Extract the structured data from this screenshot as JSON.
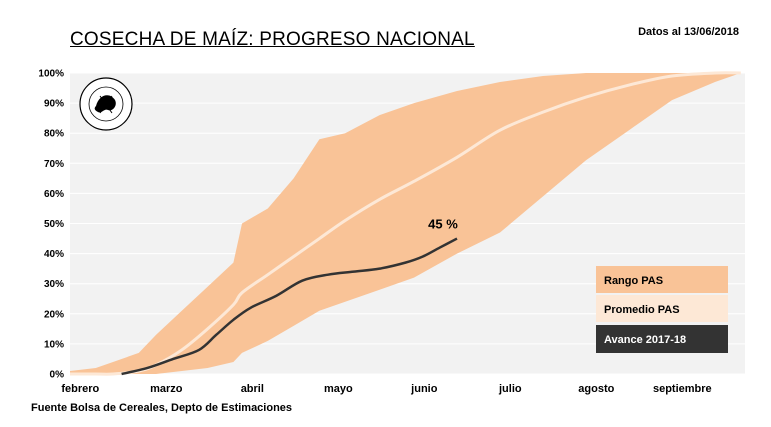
{
  "header": {
    "title": "COSECHA DE MAÍZ: PROGRESO NACIONAL",
    "date_note": "Datos al 13/06/2018"
  },
  "footer": {
    "source": "Fuente Bolsa de Cereales, Depto de Estimaciones"
  },
  "colors": {
    "range": "#f9c397",
    "average": "#fde8d6",
    "current": "#333333",
    "plot_bg": "#f2f2f2",
    "grid": "#ffffff"
  },
  "chart_data": {
    "type": "area",
    "title": "COSECHA DE MAÍZ: PROGRESO NACIONAL",
    "xlabel": "",
    "ylabel": "",
    "ylim": [
      0,
      100
    ],
    "y_ticks": [
      "0%",
      "10%",
      "20%",
      "30%",
      "40%",
      "50%",
      "60%",
      "70%",
      "80%",
      "90%",
      "100%"
    ],
    "x_ticks": [
      "febrero",
      "marzo",
      "abril",
      "mayo",
      "junio",
      "julio",
      "agosto",
      "septiembre"
    ],
    "x_unit": "month index (0 = start of febrero)",
    "grid": true,
    "legend_position": "bottom-right",
    "series": [
      {
        "name": "Rango PAS",
        "kind": "band",
        "x": [
          0,
          0.3,
          0.5,
          0.8,
          1.0,
          1.3,
          1.6,
          1.9,
          2.0,
          2.3,
          2.6,
          2.9,
          3.2,
          3.6,
          4.0,
          4.5,
          5.0,
          5.5,
          6.0,
          6.5,
          7.0,
          7.5,
          7.8
        ],
        "upper": [
          1,
          2,
          4,
          7,
          13,
          21,
          29,
          37,
          50,
          55,
          65,
          78,
          80,
          86,
          90,
          94,
          97,
          99,
          100,
          100,
          100,
          100,
          100
        ],
        "lower": [
          0,
          0,
          0,
          0,
          0,
          1,
          2,
          4,
          7,
          11,
          16,
          21,
          24,
          28,
          32,
          40,
          47,
          59,
          71,
          81,
          91,
          97,
          100
        ]
      },
      {
        "name": "Promedio PAS",
        "kind": "line",
        "x": [
          0,
          0.3,
          0.5,
          0.8,
          1.0,
          1.3,
          1.6,
          1.9,
          2.0,
          2.3,
          2.6,
          2.9,
          3.2,
          3.6,
          4.0,
          4.5,
          5.0,
          5.5,
          6.0,
          6.5,
          7.0,
          7.5,
          7.8
        ],
        "y": [
          0,
          0,
          0,
          1,
          3,
          8,
          15,
          23,
          27,
          33,
          39,
          45,
          51,
          58,
          64,
          72,
          81,
          87,
          92,
          96,
          99,
          100,
          100
        ]
      },
      {
        "name": "Avance 2017-18",
        "kind": "line",
        "x": [
          0.6,
          0.9,
          1.2,
          1.5,
          1.7,
          1.9,
          2.1,
          2.4,
          2.7,
          3.0,
          3.3,
          3.6,
          3.9,
          4.1,
          4.3,
          4.5
        ],
        "y": [
          0,
          2,
          5,
          8,
          13,
          18,
          22,
          26,
          31,
          33,
          34,
          35,
          37,
          39,
          42,
          45
        ]
      }
    ],
    "annotations": [
      {
        "text": "45 %",
        "x": 4.5,
        "y": 45,
        "series": "Avance 2017-18"
      }
    ]
  }
}
